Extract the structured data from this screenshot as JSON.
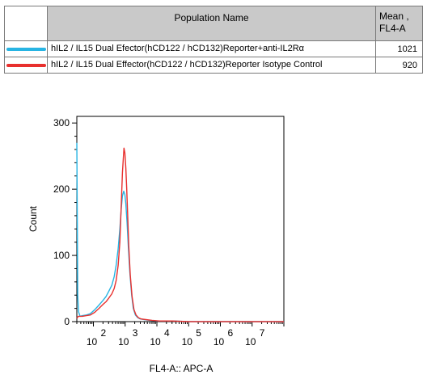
{
  "legend": {
    "header_name": "Population Name",
    "header_mean_line1": "Mean ,",
    "header_mean_line2": "FL4-A",
    "rows": [
      {
        "name": "hIL2 / IL15 Dual Efector(hCD122 / hCD132)Reporter+anti-IL2Rα",
        "mean": "1021",
        "color": "#27b4e3"
      },
      {
        "name": "hIL2 / IL15 Dual Effector(hCD122 / hCD132)Reporter Isotype Control",
        "mean": "920",
        "color": "#e8302e"
      }
    ]
  },
  "chart_data": {
    "type": "line",
    "title": "",
    "xlabel": "FL4-A:: APC-A",
    "ylabel": "Count",
    "x_scale": "log",
    "xlim": [
      30,
      100000000
    ],
    "ylim": [
      0,
      310
    ],
    "y_ticks": [
      0,
      100,
      200,
      300
    ],
    "y_tick_labels": [
      "0",
      "100",
      "200",
      "300"
    ],
    "x_tick_labels": [
      {
        "base": "10",
        "exp": "2"
      },
      {
        "base": "10",
        "exp": "3"
      },
      {
        "base": "10",
        "exp": "4"
      },
      {
        "base": "10",
        "exp": "5"
      },
      {
        "base": "10",
        "exp": "6"
      },
      {
        "base": "10",
        "exp": "7"
      }
    ],
    "x_tick_values": [
      100,
      1000,
      10000,
      100000,
      1000000,
      10000000
    ],
    "grid": false,
    "series": [
      {
        "name": "hIL2 / IL15 Dual Efector(hCD122 / hCD132)Reporter+anti-IL2Rα",
        "color": "#27b4e3",
        "x": [
          30,
          31,
          32,
          34,
          38,
          45,
          60,
          80,
          110,
          150,
          200,
          250,
          300,
          380,
          450,
          520,
          600,
          680,
          750,
          820,
          900,
          980,
          1050,
          1150,
          1250,
          1400,
          1600,
          1800,
          2100,
          2500,
          3000,
          4000,
          6000,
          10000,
          30000,
          100000,
          1000000,
          10000000,
          100000000
        ],
        "y": [
          270,
          150,
          40,
          15,
          8,
          9,
          10,
          12,
          18,
          25,
          32,
          38,
          45,
          55,
          68,
          85,
          110,
          140,
          170,
          190,
          197,
          192,
          178,
          150,
          115,
          75,
          40,
          20,
          10,
          6,
          4,
          3,
          2,
          1,
          1,
          0,
          0,
          0,
          0
        ]
      },
      {
        "name": "hIL2 / IL15 Dual Effector(hCD122 / hCD132)Reporter Isotype Control",
        "color": "#e8302e",
        "x": [
          30,
          31,
          32,
          34,
          38,
          45,
          60,
          80,
          110,
          150,
          200,
          250,
          300,
          380,
          450,
          520,
          600,
          680,
          750,
          820,
          870,
          920,
          980,
          1050,
          1120,
          1200,
          1300,
          1450,
          1650,
          1900,
          2200,
          2600,
          3200,
          4500,
          7000,
          12000,
          30000,
          100000,
          1000000,
          10000000,
          100000000
        ],
        "y": [
          5,
          6,
          7,
          8,
          8,
          8,
          9,
          10,
          14,
          20,
          26,
          30,
          35,
          42,
          50,
          62,
          85,
          120,
          175,
          225,
          245,
          262,
          255,
          232,
          200,
          160,
          115,
          70,
          38,
          18,
          10,
          6,
          4,
          3,
          2,
          1,
          1,
          0,
          0,
          0,
          0
        ]
      }
    ]
  }
}
